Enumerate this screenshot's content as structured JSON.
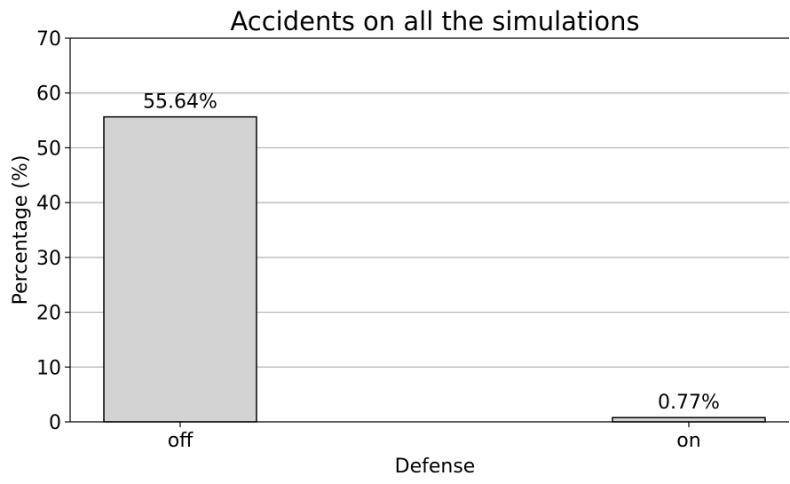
{
  "chart_data": {
    "type": "bar",
    "title": "Accidents on all the simulations",
    "xlabel": "Defense",
    "ylabel": "Percentage (%)",
    "categories": [
      "off",
      "on"
    ],
    "values": [
      55.64,
      0.77
    ],
    "value_labels": [
      "55.64%",
      "0.77%"
    ],
    "ylim": [
      0,
      70
    ],
    "yticks": [
      0,
      10,
      20,
      30,
      40,
      50,
      60,
      70
    ],
    "ytick_labels": [
      "0",
      "10",
      "20",
      "30",
      "40",
      "50",
      "60",
      "70"
    ],
    "grid": "horizontal",
    "bar_color": "#d3d3d3",
    "bar_edge_color": "#000000",
    "grid_color": "#b0b0b0"
  }
}
